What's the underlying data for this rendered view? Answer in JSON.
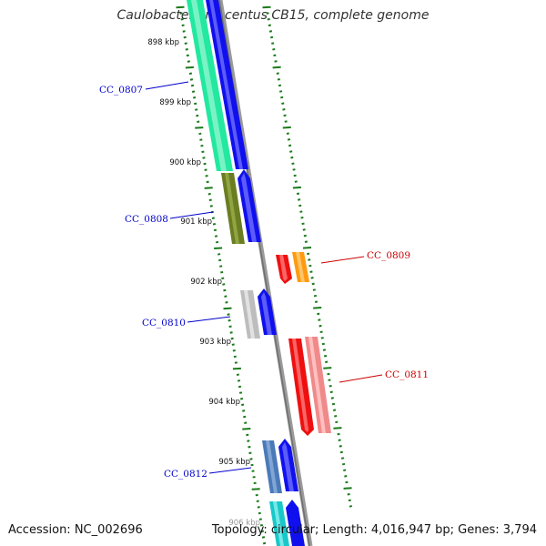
{
  "title": "Caulobacter crescentus CB15, complete genome",
  "footer": {
    "accession_label": "Accession: NC_002696",
    "topology_label": "Topology: circular; Length: 4,016,947 bp; Genes: 3,794"
  },
  "colors": {
    "backbone": "#808080",
    "ruler_ticks": "#1a7a1a",
    "forward_label": "#0000cc",
    "reverse_label": "#cc0000"
  },
  "ruler_labels": [
    "898 kbp",
    "899 kbp",
    "900 kbp",
    "901 kbp",
    "902 kbp",
    "903 kbp",
    "904 kbp",
    "905 kbp",
    "906 kbp"
  ],
  "genes": [
    {
      "id": "CC_0807",
      "strand": "forward"
    },
    {
      "id": "CC_0808",
      "strand": "forward"
    },
    {
      "id": "CC_0809",
      "strand": "reverse"
    },
    {
      "id": "CC_0810",
      "strand": "forward"
    },
    {
      "id": "CC_0811",
      "strand": "reverse"
    },
    {
      "id": "CC_0812",
      "strand": "forward"
    }
  ]
}
